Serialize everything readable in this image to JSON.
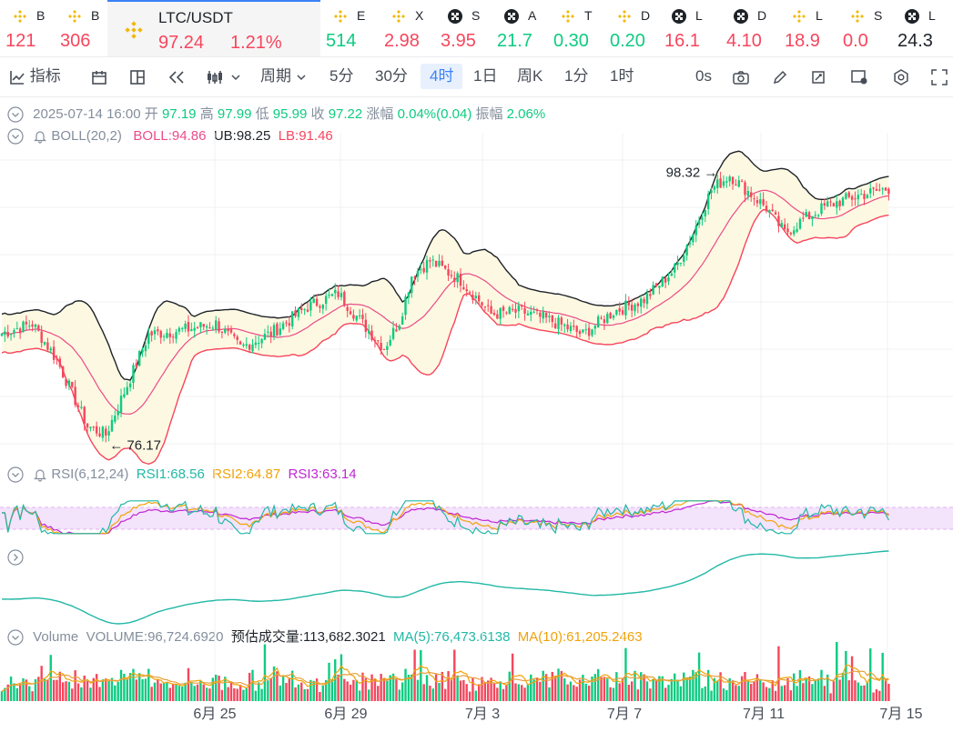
{
  "tickers": [
    {
      "symbol": "B",
      "value": "121",
      "color": "#f6465d",
      "icon": "binance-icon"
    },
    {
      "symbol": "B",
      "value": "306",
      "color": "#f6465d",
      "icon": "binance-icon"
    },
    {
      "symbol": "LTC/USDT",
      "value": "97.24",
      "change": "1.21%",
      "color": "#f6465d",
      "icon": "binance-icon",
      "active": true
    },
    {
      "symbol": "E",
      "value": "514",
      "color": "#0ecb81",
      "icon": "binance-icon"
    },
    {
      "symbol": "X",
      "value": "2.98",
      "color": "#f6465d",
      "icon": "binance-icon"
    },
    {
      "symbol": "S",
      "value": "3.95",
      "color": "#f6465d",
      "icon": "okx-icon"
    },
    {
      "symbol": "A",
      "value": "21.7",
      "color": "#0ecb81",
      "icon": "okx-icon"
    },
    {
      "symbol": "T",
      "value": "0.30",
      "color": "#0ecb81",
      "icon": "binance-icon"
    },
    {
      "symbol": "D",
      "value": "0.20",
      "color": "#0ecb81",
      "icon": "binance-icon"
    },
    {
      "symbol": "L",
      "value": "16.1",
      "color": "#f6465d",
      "icon": "okx-icon"
    },
    {
      "symbol": "D",
      "value": "4.10",
      "color": "#f6465d",
      "icon": "okx-icon"
    },
    {
      "symbol": "L",
      "value": "18.9",
      "color": "#f6465d",
      "icon": "binance-icon"
    },
    {
      "symbol": "S",
      "value": "0.0",
      "color": "#f6465d",
      "icon": "binance-icon"
    },
    {
      "symbol": "L",
      "value": "24.3",
      "color": "#1e2329",
      "icon": "okx-icon"
    }
  ],
  "toolbar": {
    "indicators": "指标",
    "period": "周期",
    "intervals": [
      "5分",
      "30分",
      "4时",
      "1日",
      "周K",
      "1分",
      "1时"
    ],
    "active_interval": "4时",
    "seconds": "0s"
  },
  "ohlc": {
    "datetime": "2025-07-14 16:00",
    "open_label": "开",
    "open": "97.19",
    "high_label": "高",
    "high": "97.99",
    "low_label": "低",
    "low": "95.99",
    "close_label": "收",
    "close": "97.22",
    "change_label": "涨幅",
    "change": "0.04%(0.04)",
    "amplitude_label": "振幅",
    "amplitude": "2.06%"
  },
  "boll_legend": {
    "name": "BOLL(20,2)",
    "boll": "BOLL:94.86",
    "ub": "UB:98.25",
    "lb": "LB:91.46"
  },
  "rsi_legend": {
    "name": "RSI(6,12,24)",
    "rsi1": "RSI1:68.56",
    "rsi2": "RSI2:64.87",
    "rsi3": "RSI3:63.14"
  },
  "volume_legend": {
    "name": "Volume",
    "volume": "VOLUME:96,724.6920",
    "estimate": "预估成交量:113,682.3021",
    "ma5": "MA(5):76,473.6138",
    "ma10": "MA(10):61,205.2463"
  },
  "chart_data": {
    "type": "candlestick",
    "symbol": "LTC/USDT",
    "interval": "4h",
    "x_tick_labels": [
      "6月 25",
      "6月 29",
      "7月 3",
      "7月 7",
      "7月 11",
      "7月 15"
    ],
    "price_range": [
      75,
      100
    ],
    "annotations": [
      {
        "label": "98.32",
        "kind": "high"
      },
      {
        "label": "76.17",
        "kind": "low"
      }
    ],
    "price_waypoints": [
      [
        0,
        85.2
      ],
      [
        10,
        86.0
      ],
      [
        18,
        83.0
      ],
      [
        28,
        77.5
      ],
      [
        34,
        76.8
      ],
      [
        42,
        81.5
      ],
      [
        48,
        85.1
      ],
      [
        60,
        85.5
      ],
      [
        70,
        86.0
      ],
      [
        78,
        84.0
      ],
      [
        88,
        85.2
      ],
      [
        100,
        87.4
      ],
      [
        110,
        88.5
      ],
      [
        118,
        86.0
      ],
      [
        125,
        84.0
      ],
      [
        130,
        86.2
      ],
      [
        134,
        90.0
      ],
      [
        140,
        91.2
      ],
      [
        150,
        89.6
      ],
      [
        160,
        86.8
      ],
      [
        170,
        87.0
      ],
      [
        180,
        86.2
      ],
      [
        190,
        85.1
      ],
      [
        200,
        87.0
      ],
      [
        210,
        88.0
      ],
      [
        220,
        90.5
      ],
      [
        226,
        93.5
      ],
      [
        232,
        97.1
      ],
      [
        238,
        98.3
      ],
      [
        250,
        95.6
      ],
      [
        256,
        93.5
      ],
      [
        262,
        94.6
      ],
      [
        270,
        95.8
      ],
      [
        280,
        96.6
      ],
      [
        290,
        97.2
      ]
    ],
    "rsi": {
      "range": [
        0,
        100
      ],
      "bands": [
        30,
        70
      ],
      "final": {
        "rsi1": 68.56,
        "rsi2": 64.87,
        "rsi3": 63.14
      }
    },
    "volume": {
      "final": 96724.692,
      "ma5": 76473.6138,
      "ma10": 61205.2463
    },
    "colors": {
      "up": "#0ecb81",
      "down": "#f6465d",
      "boll_mid": "#ea4c89",
      "boll_ub": "#1e2329",
      "boll_lb": "#f6465d",
      "rsi1": "#22b8a6",
      "rsi2": "#f0a30a",
      "rsi3": "#c026d3",
      "ma5": "#f0a30a",
      "ma10": "#f0a30a",
      "grid": "#f0f1f3"
    }
  }
}
